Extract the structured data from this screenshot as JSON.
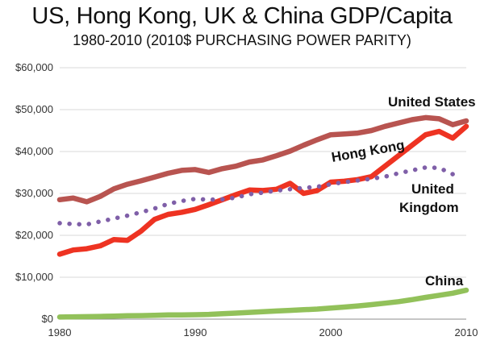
{
  "chart_data": {
    "type": "line",
    "title": "US, Hong Kong, UK & China GDP/Capita",
    "subtitle": "1980-2010 (2010$ PURCHASING POWER PARITY)",
    "x_tick_labels": [
      "1980",
      "1990",
      "2000",
      "2010"
    ],
    "x_ticks": [
      1980,
      1990,
      2000,
      2010
    ],
    "xlim": [
      1980,
      2010
    ],
    "ylim": [
      0,
      60000
    ],
    "y_ticks": [
      0,
      10000,
      20000,
      30000,
      40000,
      50000,
      60000
    ],
    "y_tick_labels": [
      "$0",
      "$10,000",
      "$20,000",
      "$30,000",
      "$40,000",
      "$50,000",
      "$60,000"
    ],
    "grid": "horizontal",
    "x": [
      1980,
      1981,
      1982,
      1983,
      1984,
      1985,
      1986,
      1987,
      1988,
      1989,
      1990,
      1991,
      1992,
      1993,
      1994,
      1995,
      1996,
      1997,
      1998,
      1999,
      2000,
      2001,
      2002,
      2003,
      2004,
      2005,
      2006,
      2007,
      2008,
      2009,
      2010
    ],
    "series": [
      {
        "name": "United States",
        "color": "#b85450",
        "style": "solid",
        "values": [
          28500,
          28900,
          28000,
          29300,
          31100,
          32200,
          33000,
          33900,
          34800,
          35500,
          35700,
          35000,
          35900,
          36500,
          37500,
          38000,
          39000,
          40100,
          41500,
          42800,
          44000,
          44200,
          44400,
          45000,
          46000,
          46800,
          47600,
          48100,
          47800,
          46400,
          47300
        ]
      },
      {
        "name": "Hong Kong",
        "color": "#ee3322",
        "style": "solid",
        "values": [
          15500,
          16500,
          16800,
          17500,
          19000,
          18800,
          21000,
          23800,
          25000,
          25500,
          26200,
          27300,
          28500,
          29700,
          30800,
          30700,
          31000,
          32400,
          30000,
          30700,
          32700,
          32900,
          33300,
          34000,
          36500,
          39000,
          41500,
          44000,
          44800,
          43200,
          46000
        ]
      },
      {
        "name": "United Kingdom",
        "color": "#7f5fa8",
        "style": "dotted",
        "values": [
          22900,
          22700,
          22600,
          23300,
          24000,
          24700,
          25500,
          26400,
          27500,
          28200,
          28700,
          28500,
          28600,
          29000,
          29800,
          30200,
          30700,
          31000,
          31300,
          31600,
          32200,
          32700,
          33100,
          33500,
          34000,
          34800,
          35500,
          36200,
          36100,
          34600,
          null
        ]
      },
      {
        "name": "China",
        "color": "#92c15a",
        "style": "solid",
        "values": [
          500,
          550,
          600,
          650,
          720,
          800,
          850,
          920,
          1000,
          1000,
          1050,
          1130,
          1300,
          1450,
          1620,
          1780,
          1950,
          2100,
          2250,
          2400,
          2650,
          2880,
          3150,
          3460,
          3800,
          4180,
          4650,
          5200,
          5700,
          6200,
          6900
        ]
      }
    ],
    "labels": {
      "us": "United States",
      "hk": "Hong Kong",
      "uk_line1": "United",
      "uk_line2": "Kingdom",
      "china": "China"
    }
  }
}
